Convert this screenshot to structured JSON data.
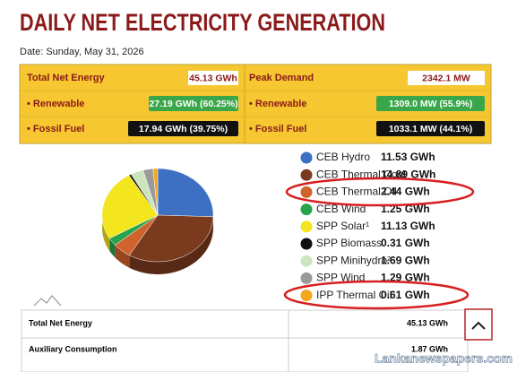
{
  "header": {
    "title": "DAILY NET ELECTRICITY GENERATION",
    "date": "Date: Sunday, May 31, 2026"
  },
  "summary": {
    "energy": {
      "total_label": "Total Net Energy",
      "total": "45.13 GWh",
      "renewable_label": "• Renewable",
      "renewable": "27.19 GWh (60.25%)",
      "fossil_label": "• Fossil Fuel",
      "fossil": "17.94 GWh (39.75%)"
    },
    "demand": {
      "total_label": "Peak Demand",
      "total": "2342.1 MW",
      "renewable_label": "• Renewable",
      "renewable": "1309.0 MW (55.9%)",
      "fossil_label": "• Fossil Fuel",
      "fossil": "1033.1 MW (44.1%)"
    }
  },
  "chart_data": {
    "type": "pie",
    "categories": [
      "CEB Hydro",
      "CEB Thermal Coal",
      "CEB Thermal Oil",
      "CEB Wind",
      "SPP Solar¹",
      "SPP Biomass",
      "SPP Minihydro²",
      "SPP Wind",
      "IPP Thermal Oil"
    ],
    "values": [
      11.53,
      14.89,
      2.44,
      1.25,
      11.13,
      0.31,
      1.69,
      1.29,
      0.61
    ],
    "value_labels": [
      "11.53 GWh",
      "14.89 GWh",
      "2.44 GWh",
      "1.25 GWh",
      "11.13 GWh",
      "0.31 GWh",
      "1.69 GWh",
      "1.29 GWh",
      "0.61 GWh"
    ],
    "colors": [
      "#3d6fc2",
      "#7a3a1d",
      "#d0622b",
      "#27a449",
      "#f3e61f",
      "#111111",
      "#cde5bf",
      "#9a9a9a",
      "#f2a71d"
    ]
  },
  "table": {
    "rows": [
      [
        "Total Net Energy",
        "45.13 GWh"
      ],
      [
        "Auxiliary Consumption",
        "1.87 GWh"
      ]
    ]
  },
  "watermark": "Lankanewspapers.com"
}
